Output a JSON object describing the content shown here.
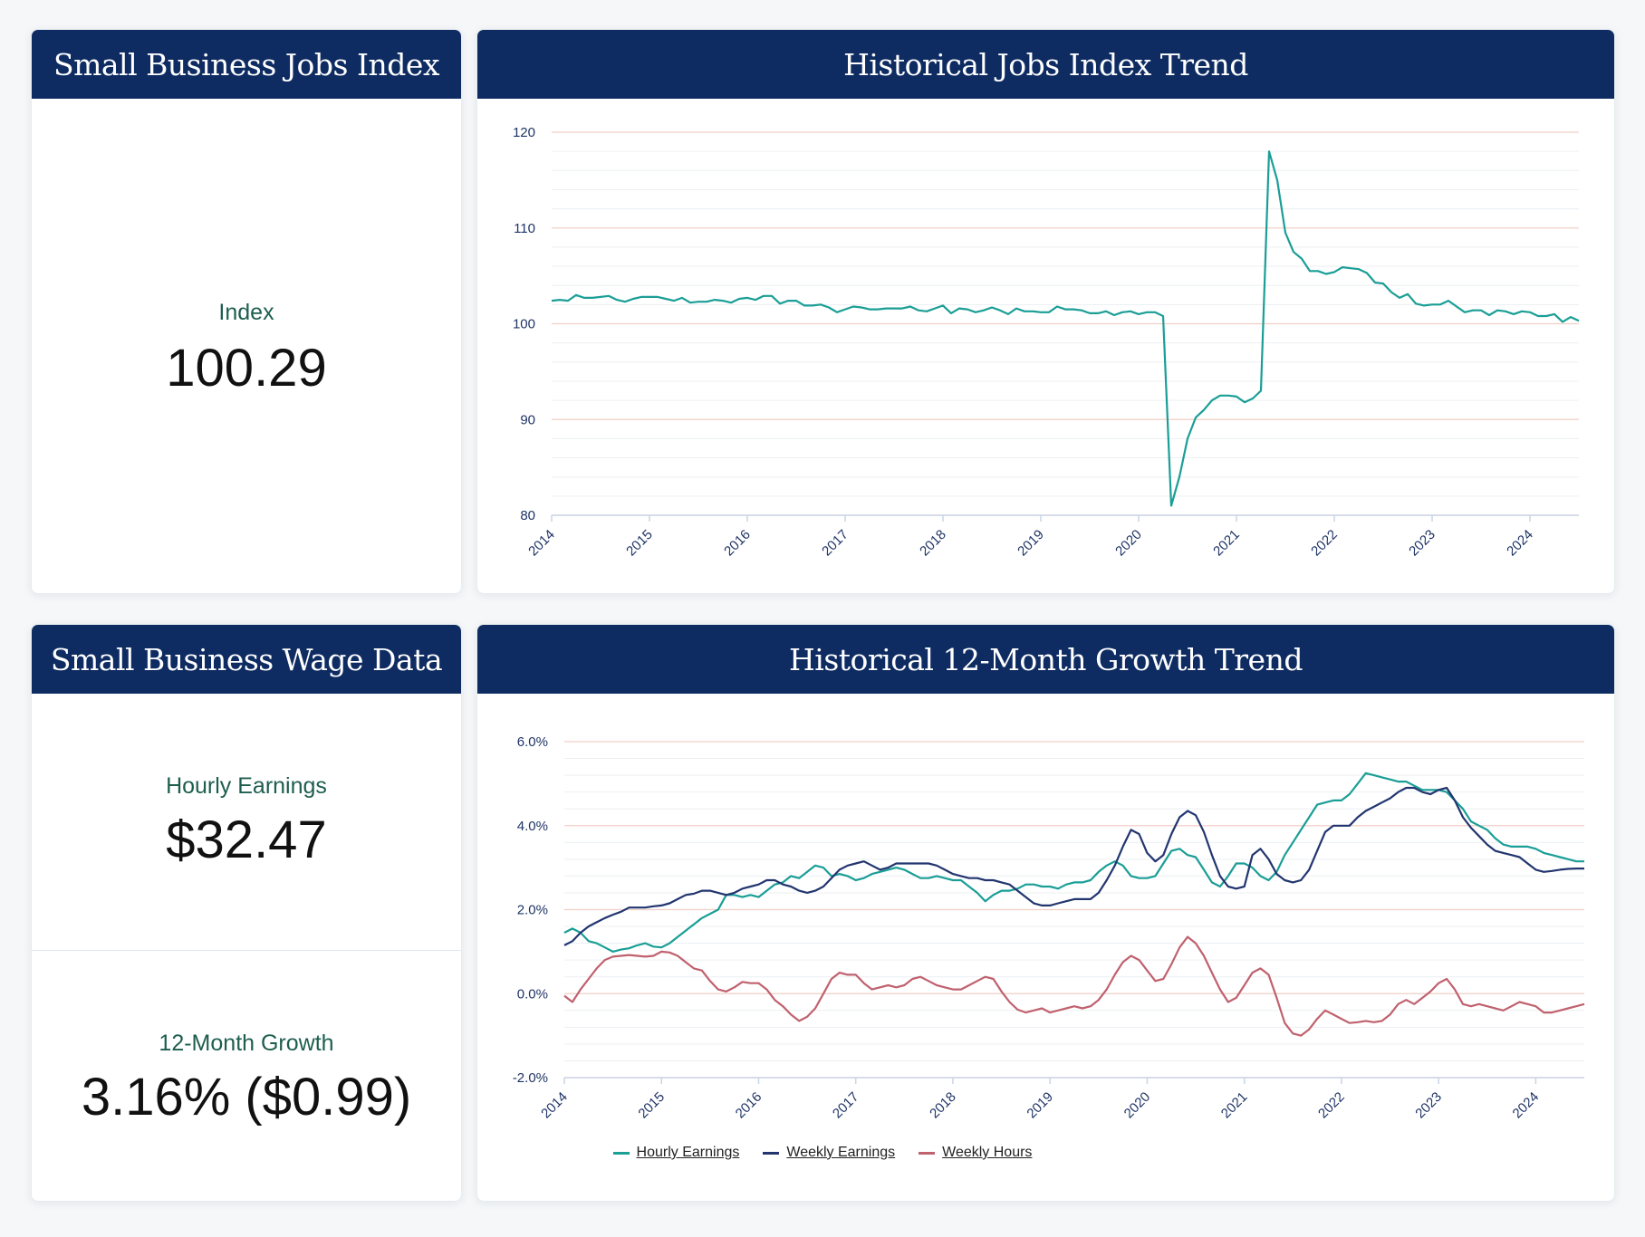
{
  "jobs_card": {
    "title": "Small Business Jobs Index",
    "label": "Index",
    "value": "100.29"
  },
  "wage_card": {
    "title": "Small Business Wage Data",
    "hourly_label": "Hourly Earnings",
    "hourly_value": "$32.47",
    "growth_label": "12-Month Growth",
    "growth_value": "3.16% ($0.99)"
  },
  "colors": {
    "header": "#0f2c62",
    "teal": "#1a9e96",
    "navy": "#22356f",
    "rose": "#c0616e",
    "major_grid": "#f1cfc6",
    "minor_grid": "#eceff2",
    "tick_text": "#1f3466"
  },
  "chart_data": [
    {
      "type": "line",
      "title": "Historical Jobs Index Trend",
      "xlabel": "",
      "ylabel": "",
      "x_start": "2014-01",
      "x_step": "month",
      "xlim": [
        2014,
        2024.5
      ],
      "ylim": [
        80,
        120
      ],
      "yticks": [
        80,
        90,
        100,
        110,
        120
      ],
      "ytick_labels": [
        "80",
        "90",
        "100",
        "110",
        "120"
      ],
      "xticks": [
        "2014",
        "2015",
        "2016",
        "2017",
        "2018",
        "2019",
        "2020",
        "2021",
        "2022",
        "2023",
        "2024"
      ],
      "grid": true,
      "series": [
        {
          "name": "Jobs Index",
          "values": [
            102.4,
            102.5,
            102.4,
            103.0,
            102.7,
            102.7,
            102.8,
            102.9,
            102.5,
            102.3,
            102.6,
            102.8,
            102.8,
            102.8,
            102.6,
            102.4,
            102.7,
            102.2,
            102.3,
            102.3,
            102.5,
            102.4,
            102.2,
            102.6,
            102.7,
            102.5,
            102.9,
            102.9,
            102.1,
            102.4,
            102.4,
            101.9,
            101.9,
            102.0,
            101.7,
            101.2,
            101.5,
            101.8,
            101.7,
            101.5,
            101.5,
            101.6,
            101.6,
            101.6,
            101.8,
            101.4,
            101.3,
            101.6,
            101.9,
            101.1,
            101.6,
            101.5,
            101.2,
            101.4,
            101.7,
            101.4,
            101.0,
            101.6,
            101.3,
            101.3,
            101.2,
            101.2,
            101.8,
            101.5,
            101.5,
            101.4,
            101.1,
            101.1,
            101.3,
            100.9,
            101.2,
            101.3,
            101.0,
            101.2,
            101.2,
            100.8,
            81.0,
            84.0,
            88.0,
            90.2,
            91.0,
            92.0,
            92.5,
            92.5,
            92.4,
            91.8,
            92.2,
            93.0,
            118.0,
            115.0,
            109.5,
            107.5,
            106.8,
            105.5,
            105.5,
            105.2,
            105.4,
            105.9,
            105.8,
            105.7,
            105.3,
            104.3,
            104.2,
            103.3,
            102.7,
            103.1,
            102.1,
            101.9,
            102.0,
            102.0,
            102.4,
            101.8,
            101.2,
            101.4,
            101.4,
            100.9,
            101.4,
            101.3,
            101.0,
            101.3,
            101.2,
            100.8,
            100.8,
            101.0,
            100.2,
            100.7,
            100.3
          ]
        }
      ]
    },
    {
      "type": "line",
      "title": "Historical 12-Month Growth Trend",
      "xlabel": "",
      "ylabel": "",
      "x_start": "2014-01",
      "x_step": "month",
      "xlim": [
        2014,
        2024.5
      ],
      "ylim": [
        -2,
        6
      ],
      "yticks": [
        -2,
        0,
        2,
        4,
        6
      ],
      "ytick_labels": [
        "-2.0%",
        "0.0%",
        "2.0%",
        "4.0%",
        "6.0%"
      ],
      "xticks": [
        "2014",
        "2015",
        "2016",
        "2017",
        "2018",
        "2019",
        "2020",
        "2021",
        "2022",
        "2023",
        "2024"
      ],
      "grid": true,
      "legend_position": "bottom-center",
      "series": [
        {
          "name": "Hourly Earnings",
          "values": [
            1.45,
            1.55,
            1.45,
            1.25,
            1.2,
            1.1,
            1.0,
            1.05,
            1.08,
            1.15,
            1.2,
            1.12,
            1.1,
            1.2,
            1.35,
            1.5,
            1.65,
            1.8,
            1.9,
            2.0,
            2.35,
            2.35,
            2.3,
            2.35,
            2.3,
            2.45,
            2.6,
            2.65,
            2.8,
            2.75,
            2.9,
            3.05,
            3.0,
            2.8,
            2.85,
            2.8,
            2.7,
            2.75,
            2.85,
            2.9,
            2.95,
            3.0,
            2.95,
            2.85,
            2.75,
            2.75,
            2.8,
            2.75,
            2.7,
            2.7,
            2.55,
            2.4,
            2.2,
            2.35,
            2.45,
            2.45,
            2.5,
            2.6,
            2.6,
            2.55,
            2.55,
            2.5,
            2.6,
            2.65,
            2.65,
            2.7,
            2.9,
            3.05,
            3.15,
            3.05,
            2.8,
            2.75,
            2.75,
            2.8,
            3.1,
            3.4,
            3.45,
            3.3,
            3.25,
            2.95,
            2.65,
            2.55,
            2.8,
            3.1,
            3.1,
            3.0,
            2.8,
            2.7,
            2.9,
            3.3,
            3.6,
            3.9,
            4.2,
            4.5,
            4.55,
            4.6,
            4.6,
            4.75,
            5.0,
            5.25,
            5.2,
            5.15,
            5.1,
            5.05,
            5.05,
            4.95,
            4.85,
            4.85,
            4.85,
            4.8,
            4.6,
            4.4,
            4.1,
            4.0,
            3.9,
            3.7,
            3.55,
            3.5,
            3.5,
            3.5,
            3.45,
            3.35,
            3.3,
            3.25,
            3.2,
            3.15,
            3.15
          ]
        },
        {
          "name": "Weekly Earnings",
          "values": [
            1.15,
            1.25,
            1.45,
            1.6,
            1.7,
            1.8,
            1.88,
            1.95,
            2.05,
            2.05,
            2.05,
            2.08,
            2.1,
            2.15,
            2.25,
            2.35,
            2.38,
            2.45,
            2.45,
            2.4,
            2.35,
            2.4,
            2.5,
            2.55,
            2.6,
            2.7,
            2.7,
            2.6,
            2.55,
            2.45,
            2.4,
            2.45,
            2.55,
            2.75,
            2.95,
            3.05,
            3.1,
            3.15,
            3.05,
            2.95,
            3.0,
            3.1,
            3.1,
            3.1,
            3.1,
            3.1,
            3.05,
            2.95,
            2.85,
            2.8,
            2.75,
            2.75,
            2.7,
            2.7,
            2.65,
            2.6,
            2.45,
            2.3,
            2.15,
            2.1,
            2.1,
            2.15,
            2.2,
            2.25,
            2.25,
            2.25,
            2.4,
            2.7,
            3.05,
            3.5,
            3.9,
            3.8,
            3.35,
            3.15,
            3.3,
            3.8,
            4.2,
            4.35,
            4.25,
            3.85,
            3.3,
            2.8,
            2.55,
            2.5,
            2.55,
            3.3,
            3.45,
            3.2,
            2.85,
            2.7,
            2.65,
            2.7,
            2.95,
            3.4,
            3.85,
            4.0,
            4.0,
            4.0,
            4.2,
            4.35,
            4.45,
            4.55,
            4.65,
            4.8,
            4.9,
            4.9,
            4.8,
            4.75,
            4.85,
            4.9,
            4.6,
            4.2,
            3.95,
            3.75,
            3.55,
            3.4,
            3.35,
            3.3,
            3.25,
            3.1,
            2.95,
            2.9,
            2.92,
            2.95,
            2.97,
            2.98,
            2.98
          ]
        },
        {
          "name": "Weekly Hours",
          "values": [
            -0.05,
            -0.2,
            0.1,
            0.35,
            0.6,
            0.8,
            0.88,
            0.9,
            0.92,
            0.9,
            0.88,
            0.9,
            1.0,
            0.98,
            0.9,
            0.75,
            0.6,
            0.55,
            0.3,
            0.1,
            0.05,
            0.15,
            0.28,
            0.25,
            0.25,
            0.1,
            -0.15,
            -0.3,
            -0.5,
            -0.65,
            -0.55,
            -0.35,
            0.0,
            0.35,
            0.5,
            0.45,
            0.45,
            0.25,
            0.1,
            0.15,
            0.2,
            0.15,
            0.2,
            0.35,
            0.4,
            0.3,
            0.2,
            0.15,
            0.1,
            0.1,
            0.2,
            0.3,
            0.4,
            0.35,
            0.05,
            -0.2,
            -0.38,
            -0.45,
            -0.4,
            -0.35,
            -0.45,
            -0.4,
            -0.35,
            -0.3,
            -0.35,
            -0.3,
            -0.15,
            0.1,
            0.45,
            0.75,
            0.9,
            0.8,
            0.55,
            0.3,
            0.35,
            0.7,
            1.1,
            1.35,
            1.2,
            0.9,
            0.5,
            0.1,
            -0.2,
            -0.1,
            0.2,
            0.5,
            0.6,
            0.45,
            -0.1,
            -0.7,
            -0.95,
            -1.0,
            -0.85,
            -0.6,
            -0.4,
            -0.5,
            -0.6,
            -0.7,
            -0.68,
            -0.65,
            -0.68,
            -0.65,
            -0.5,
            -0.25,
            -0.15,
            -0.25,
            -0.1,
            0.05,
            0.25,
            0.35,
            0.1,
            -0.25,
            -0.3,
            -0.25,
            -0.3,
            -0.35,
            -0.4,
            -0.3,
            -0.2,
            -0.25,
            -0.3,
            -0.45,
            -0.45,
            -0.4,
            -0.35,
            -0.3,
            -0.25
          ]
        }
      ]
    }
  ]
}
